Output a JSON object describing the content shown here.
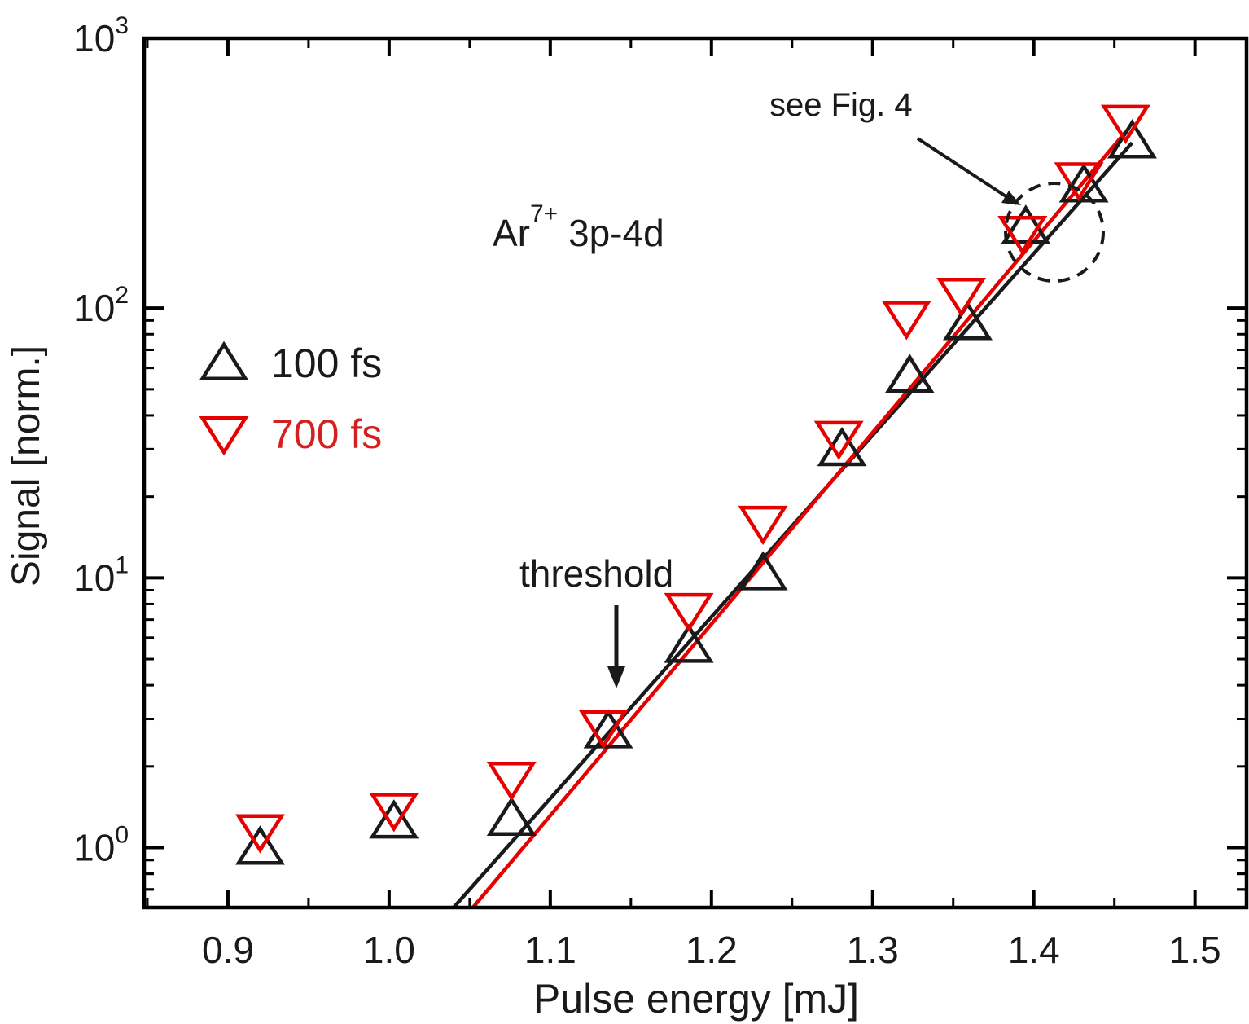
{
  "chart_data": {
    "type": "scatter",
    "title": "",
    "xlabel": "Pulse energy [mJ]",
    "ylabel": "Signal [norm.]",
    "xlim": [
      0.848,
      1.532
    ],
    "ylim": [
      0.6,
      1000
    ],
    "yscale": "log",
    "x_ticks": [
      {
        "value": 0.9,
        "label": "0.9"
      },
      {
        "value": 1.0,
        "label": "1.0"
      },
      {
        "value": 1.1,
        "label": "1.1"
      },
      {
        "value": 1.2,
        "label": "1.2"
      },
      {
        "value": 1.3,
        "label": "1.3"
      },
      {
        "value": 1.4,
        "label": "1.4"
      },
      {
        "value": 1.5,
        "label": "1.5"
      }
    ],
    "y_ticks": [
      {
        "value": 1,
        "base": "10",
        "exp": "0"
      },
      {
        "value": 10,
        "base": "10",
        "exp": "1"
      },
      {
        "value": 100,
        "base": "10",
        "exp": "2"
      },
      {
        "value": 1000,
        "base": "10",
        "exp": "3"
      }
    ],
    "series": [
      {
        "name": "100 fs",
        "marker": "triangle-up",
        "color": "#1a1a1a",
        "points": [
          [
            0.92,
            1.0
          ],
          [
            1.003,
            1.25
          ],
          [
            1.076,
            1.28
          ],
          [
            1.136,
            2.7
          ],
          [
            1.186,
            5.6
          ],
          [
            1.232,
            10.4
          ],
          [
            1.281,
            30
          ],
          [
            1.323,
            56
          ],
          [
            1.359,
            88
          ],
          [
            1.395,
            200
          ],
          [
            1.431,
            285
          ],
          [
            1.461,
            415
          ]
        ]
      },
      {
        "name": "700 fs",
        "marker": "triangle-down",
        "color": "#e60000",
        "points": [
          [
            0.92,
            1.15
          ],
          [
            1.003,
            1.38
          ],
          [
            1.076,
            1.8
          ],
          [
            1.133,
            2.8
          ],
          [
            1.186,
            7.6
          ],
          [
            1.232,
            16
          ],
          [
            1.279,
            33
          ],
          [
            1.321,
            92
          ],
          [
            1.355,
            112
          ],
          [
            1.393,
            190
          ],
          [
            1.428,
            300
          ],
          [
            1.457,
            490
          ]
        ]
      }
    ],
    "fit_lines": [
      {
        "series": "100 fs",
        "color": "#1a1a1a",
        "from": [
          1.04,
          0.6
        ],
        "to": [
          1.461,
          410
        ]
      },
      {
        "series": "700 fs",
        "color": "#e60000",
        "from": [
          1.052,
          0.6
        ],
        "to": [
          1.457,
          450
        ]
      }
    ],
    "legend": {
      "position": "left",
      "items": [
        {
          "label": "100 fs",
          "color": "#1a1a1a",
          "text_color": "#1a1a1a",
          "marker": "triangle-up"
        },
        {
          "label": "700 fs",
          "color": "#e60000",
          "text_color": "#d42020",
          "marker": "triangle-down"
        }
      ]
    },
    "annotations": {
      "species": {
        "base": "Ar",
        "sup": "7+",
        "rest": " 3p-4d"
      },
      "threshold": {
        "text": "threshold",
        "x": 1.1
      },
      "see_fig": {
        "text": "see Fig. 4"
      }
    }
  }
}
